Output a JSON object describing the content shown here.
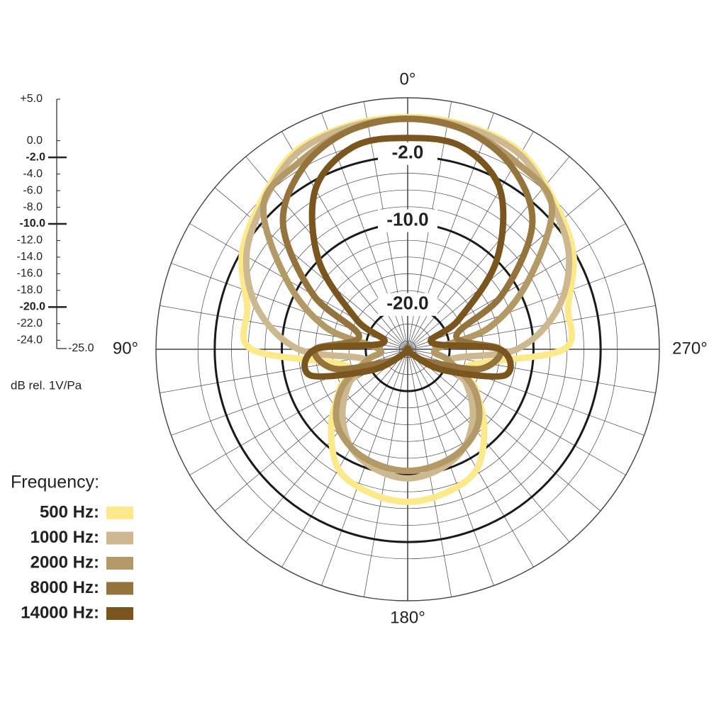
{
  "chart_data": {
    "type": "polar",
    "rlim": [
      -25,
      5
    ],
    "rticks": [
      {
        "value": 5,
        "label": "+5.0"
      },
      {
        "value": 0,
        "label": "0.0"
      },
      {
        "value": -2,
        "label": "-2.0"
      },
      {
        "value": -4,
        "label": "-4.0"
      },
      {
        "value": -6,
        "label": "-6.0"
      },
      {
        "value": -8,
        "label": "-8.0"
      },
      {
        "value": -10,
        "label": "-10.0"
      },
      {
        "value": -12,
        "label": "-12.0"
      },
      {
        "value": -14,
        "label": "-14.0"
      },
      {
        "value": -16,
        "label": "-16.0"
      },
      {
        "value": -18,
        "label": "-18.0"
      },
      {
        "value": -20,
        "label": "-20.0"
      },
      {
        "value": -22,
        "label": "-22.0"
      },
      {
        "value": -24,
        "label": "-24.0"
      },
      {
        "value": -25,
        "label": "-25.0"
      }
    ],
    "ring_labels": [
      {
        "value": -2,
        "label": "-2.0"
      },
      {
        "value": -10,
        "label": "-10.0"
      },
      {
        "value": -20,
        "label": "-20.0"
      }
    ],
    "angle_ticks": [
      {
        "value": 0,
        "label": "0°"
      },
      {
        "value": 90,
        "label": "90°"
      },
      {
        "value": 180,
        "label": "180°"
      },
      {
        "value": 270,
        "label": "270°"
      }
    ],
    "thetagrid": [
      0,
      10,
      20,
      30,
      40,
      50,
      60,
      70,
      80,
      90,
      100,
      110,
      120,
      130,
      140,
      150,
      160,
      170,
      180,
      190,
      200,
      210,
      220,
      230,
      240,
      250,
      260,
      270,
      280,
      290,
      300,
      310,
      320,
      330,
      340,
      350
    ],
    "r_axis_label": "dB rel. 1V/Pa",
    "legend_title": "Frequency:",
    "theta": [
      0,
      15,
      30,
      45,
      60,
      75,
      90,
      105,
      120,
      135,
      150,
      165,
      180,
      195,
      210,
      225,
      240,
      255,
      270,
      285,
      300,
      315,
      330,
      345
    ],
    "series": [
      {
        "name": "500 Hz:",
        "color": "#fbe98a",
        "values": [
          2.7,
          2.6,
          2.1,
          -0.2,
          -2.2,
          -5.2,
          -6.4,
          -17.4,
          -15.7,
          -12.1,
          -8.5,
          -7.3,
          -6.8,
          -7.3,
          -8.5,
          -12.1,
          -15.7,
          -17.4,
          -6.4,
          -5.2,
          -2.2,
          -0.2,
          2.1,
          2.6
        ]
      },
      {
        "name": "1000 Hz:",
        "color": "#cdb88f",
        "values": [
          2.5,
          2.4,
          1.8,
          -0.6,
          -2.8,
          -6.5,
          -12,
          -20,
          -17,
          -14,
          -11.5,
          -10.2,
          -9.6,
          -10.2,
          -11.5,
          -14,
          -17,
          -20,
          -12,
          -6.5,
          -2.8,
          -0.6,
          1.8,
          2.4
        ]
      },
      {
        "name": "2000 Hz:",
        "color": "#b39965",
        "values": [
          2.5,
          2,
          0.8,
          -0.7,
          -8.3,
          -14.9,
          -21.6,
          -20,
          -16,
          -13,
          -11.5,
          -10.8,
          -10.5,
          -10.8,
          -11.5,
          -13,
          -16,
          -20,
          -21.6,
          -14.9,
          -8.3,
          -0.7,
          0.8,
          2
        ]
      },
      {
        "name": "8000 Hz:",
        "color": "#94733c",
        "values": [
          2.5,
          2,
          0,
          -4,
          -12,
          -19,
          -14,
          -16,
          -22,
          -24,
          -25,
          -25,
          -25,
          -25,
          -25,
          -24,
          -22,
          -16,
          -14,
          -19,
          -12,
          -4,
          0,
          2
        ]
      },
      {
        "name": "14000 Hz:",
        "color": "#7a561e",
        "values": [
          0.2,
          0,
          -3,
          -10,
          -18,
          -22,
          -14,
          -13,
          -20,
          -24,
          -25,
          -25,
          -25,
          -25,
          -25,
          -24,
          -20,
          -13,
          -14,
          -22,
          -18,
          -10,
          -3,
          0
        ]
      }
    ]
  }
}
